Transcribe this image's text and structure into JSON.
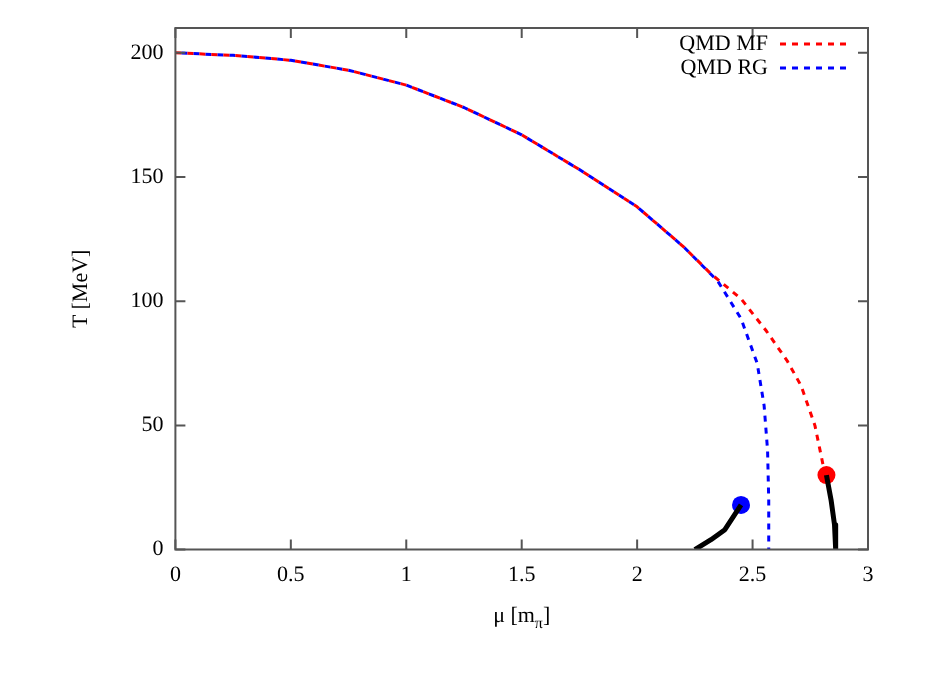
{
  "chart_data": {
    "type": "line",
    "xlabel": "μ [m$_{π}$]",
    "ylabel": "T [MeV]",
    "xlim": [
      0,
      3
    ],
    "xticks": [
      0,
      0.5,
      1,
      1.5,
      2,
      2.5,
      3
    ],
    "ylim": [
      0,
      210
    ],
    "yticks": [
      0,
      50,
      100,
      150,
      200
    ],
    "grid": false,
    "legend": "top right",
    "marker": "none",
    "series": [
      {
        "name": "QMD MF",
        "color": "#ff0000",
        "line_style": "dashed",
        "x": [
          0,
          0.25,
          0.5,
          0.75,
          1,
          1.25,
          1.5,
          1.75,
          2,
          2.2,
          2.32,
          2.45,
          2.56,
          2.65,
          2.71,
          2.77,
          2.81
        ],
        "values": [
          200,
          199,
          197,
          193,
          187,
          178,
          167,
          153,
          138,
          122,
          111,
          101,
          88,
          76,
          66,
          50,
          32
        ]
      },
      {
        "name": "QMD RG",
        "color": "#0000ff",
        "line_style": "dashed",
        "x": [
          0,
          0.25,
          0.5,
          0.75,
          1,
          1.25,
          1.5,
          1.75,
          2,
          2.2,
          2.35,
          2.45,
          2.52,
          2.55,
          2.565,
          2.57,
          2.57
        ],
        "values": [
          200,
          199,
          197,
          193,
          187,
          178,
          167,
          153,
          138,
          122,
          108,
          93,
          75,
          58,
          40,
          20,
          0
        ]
      },
      {
        "color": "#000000",
        "line_style": "solid",
        "x": [
          2.25,
          2.32,
          2.38,
          2.45
        ],
        "values": [
          0,
          4,
          8,
          18
        ]
      },
      {
        "color": "#000000",
        "line_style": "solid",
        "x": [
          2.82,
          2.84,
          2.855,
          2.86
        ],
        "values": [
          30,
          20,
          10,
          0
        ]
      },
      {
        "type": "scatter",
        "marker": "circle",
        "color": "#ff0000",
        "x": [
          2.82
        ],
        "values": [
          30
        ]
      },
      {
        "type": "scatter",
        "marker": "circle",
        "color": "#0000ff",
        "x": [
          2.45
        ],
        "values": [
          18
        ]
      }
    ]
  }
}
